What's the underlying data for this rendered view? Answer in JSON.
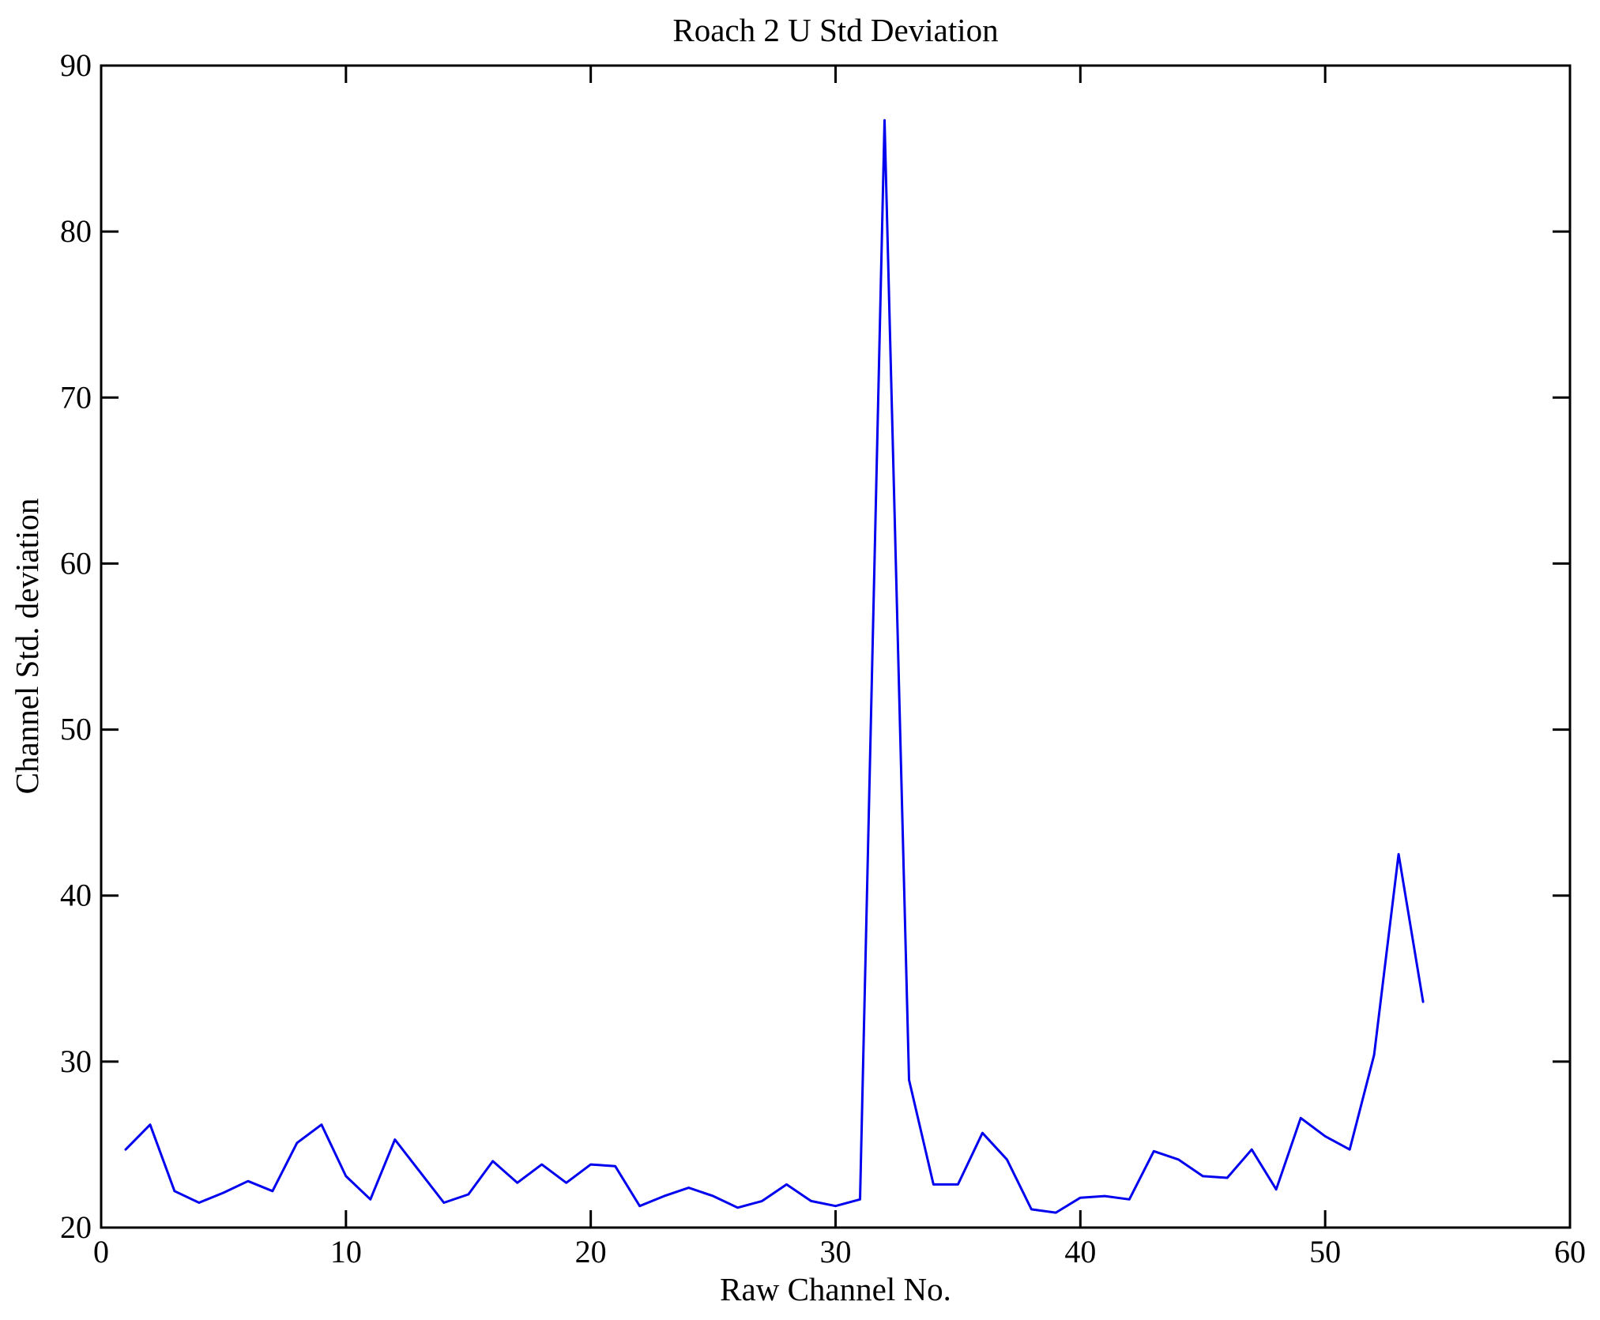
{
  "chart_data": {
    "type": "line",
    "title": "Roach 2 U Std Deviation",
    "xlabel": "Raw Channel No.",
    "ylabel": "Channel Std. deviation",
    "xlim": [
      0,
      60
    ],
    "ylim": [
      20,
      90
    ],
    "xticks": [
      0,
      10,
      20,
      30,
      40,
      50,
      60
    ],
    "yticks": [
      20,
      30,
      40,
      50,
      60,
      70,
      80,
      90
    ],
    "grid": false,
    "legend": null,
    "line_color": "#0000ee",
    "axis_color": "#000000",
    "x": [
      1,
      2,
      3,
      4,
      5,
      6,
      7,
      8,
      9,
      10,
      11,
      12,
      13,
      14,
      15,
      16,
      17,
      18,
      19,
      20,
      21,
      22,
      23,
      24,
      25,
      26,
      27,
      28,
      29,
      30,
      31,
      32,
      33,
      34,
      35,
      36,
      37,
      38,
      39,
      40,
      41,
      42,
      43,
      44,
      45,
      46,
      47,
      48,
      49,
      50,
      51,
      52,
      53,
      54
    ],
    "y": [
      24.7,
      26.2,
      22.2,
      21.5,
      22.1,
      22.8,
      22.2,
      25.1,
      26.2,
      23.1,
      21.7,
      25.3,
      23.4,
      21.5,
      22.0,
      24.0,
      22.7,
      23.8,
      22.7,
      23.8,
      23.7,
      21.3,
      21.9,
      22.4,
      21.9,
      21.2,
      21.6,
      22.6,
      21.6,
      21.3,
      21.7,
      86.7,
      28.9,
      22.6,
      22.6,
      25.7,
      24.1,
      21.1,
      20.9,
      21.8,
      21.9,
      21.7,
      24.6,
      24.1,
      23.1,
      23.0,
      24.7,
      22.3,
      26.6,
      25.5,
      24.7,
      30.4,
      42.5,
      33.6
    ]
  }
}
